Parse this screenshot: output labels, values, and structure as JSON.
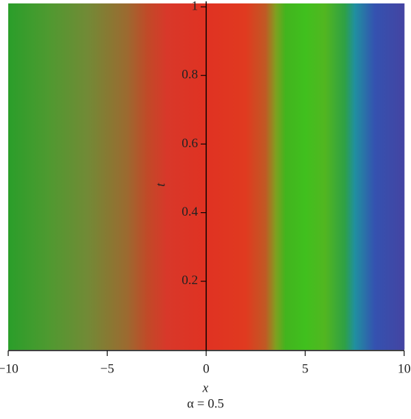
{
  "chart_data": {
    "type": "density",
    "x_label": "x",
    "y_label": "t",
    "caption": "α = 0.5",
    "x": [
      -10,
      -8,
      -6,
      -4,
      -3,
      -2,
      0,
      2,
      3,
      3.5,
      4,
      5,
      6,
      7,
      7.5,
      8.5,
      10
    ],
    "colors": [
      "#2a9e2a",
      "#4e9a30",
      "#728a36",
      "#9c6a30",
      "#c04a28",
      "#d8382a",
      "#e03222",
      "#e03a20",
      "#c05a24",
      "#80a020",
      "#42b41e",
      "#40c01e",
      "#52b620",
      "#2ea046",
      "#2090a0",
      "#3452b0",
      "#4444a2"
    ],
    "xlim": [
      -10,
      10
    ],
    "ylim": [
      0,
      1.01
    ],
    "xticks": [
      {
        "value": -10,
        "label": "−10"
      },
      {
        "value": -5,
        "label": "−5"
      },
      0,
      5,
      10
    ],
    "yticks": [
      0.2,
      0.4,
      0.6,
      0.8,
      1
    ]
  }
}
